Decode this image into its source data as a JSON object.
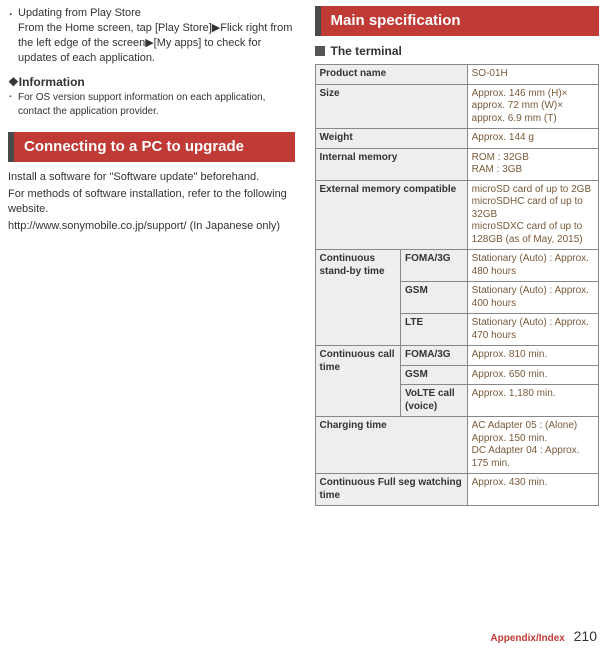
{
  "left": {
    "bullet1_title": "Updating from Play Store",
    "bullet1_body": "From the Home screen, tap [Play Store]▶Flick right from the left edge of the screen▶[My apps] to check for updates of each application.",
    "info_heading": "❖Information",
    "info_bullet": "For OS version support information on each application, contact the application provider.",
    "banner": "Connecting to a PC to upgrade",
    "p1": "Install a software for \"Software update\" beforehand.",
    "p2": "For methods of software installation, refer to the following website.",
    "p3": "http://www.sonymobile.co.jp/support/ (In Japanese only)"
  },
  "right": {
    "banner": "Main specification",
    "subheading": "The terminal",
    "table": {
      "rows": {
        "product_name": {
          "label": "Product name",
          "value": "SO-01H"
        },
        "size": {
          "label": "Size",
          "value": "Approx. 146 mm (H)× approx. 72 mm (W)× approx. 6.9 mm (T)"
        },
        "weight": {
          "label": "Weight",
          "value": "Approx. 144 g"
        },
        "internal_memory": {
          "label": "Internal memory",
          "value": "ROM : 32GB\nRAM : 3GB"
        },
        "external_memory": {
          "label": "External memory compatible",
          "value": "microSD card of up to 2GB\nmicroSDHC card of up to 32GB\nmicroSDXC card of up to 128GB (as of May, 2015)"
        },
        "standby": {
          "label": "Continuous stand-by time",
          "sub": {
            "foma": {
              "label": "FOMA/3G",
              "value": "Stationary (Auto) : Approx. 480 hours"
            },
            "gsm": {
              "label": "GSM",
              "value": "Stationary (Auto) : Approx. 400 hours"
            },
            "lte": {
              "label": "LTE",
              "value": "Stationary (Auto) : Approx. 470 hours"
            }
          }
        },
        "calltime": {
          "label": "Continuous call time",
          "sub": {
            "foma": {
              "label": "FOMA/3G",
              "value": "Approx. 810 min."
            },
            "gsm": {
              "label": "GSM",
              "value": "Approx. 650 min."
            },
            "volte": {
              "label": "VoLTE call (voice)",
              "value": "Approx. 1,180 min."
            }
          }
        },
        "charging": {
          "label": "Charging time",
          "value": "AC Adapter 05 : (Alone) Approx. 150 min.\nDC Adapter 04 : Approx. 175 min."
        },
        "fullseg": {
          "label": "Continuous Full seg watching time",
          "value": "Approx. 430 min."
        }
      }
    }
  },
  "footer": {
    "section": "Appendix/Index",
    "page": "210"
  }
}
